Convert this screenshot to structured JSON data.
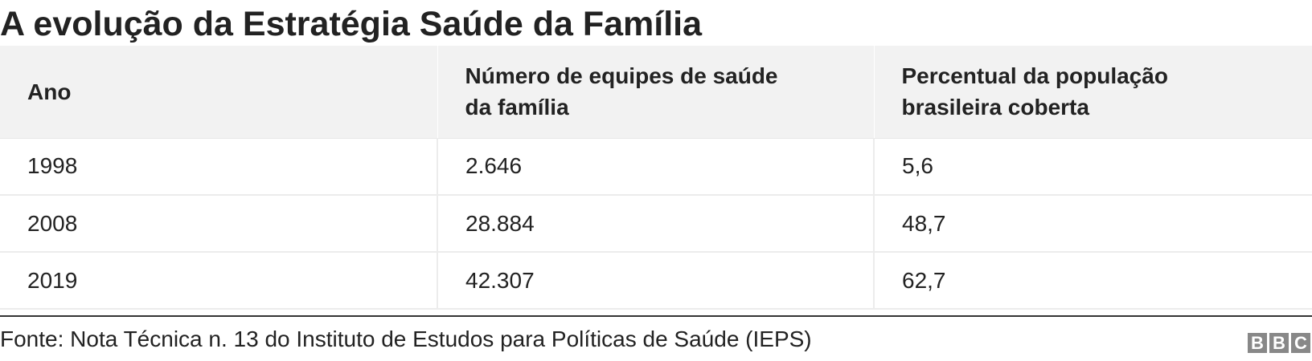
{
  "chart_data": {
    "type": "table",
    "title": "A evolução da Estratégia Saúde da Família",
    "columns": [
      "Ano",
      "Número de equipes de saúde da família",
      "Percentual da população brasileira coberta"
    ],
    "rows": [
      [
        "1998",
        "2.646",
        "5,6"
      ],
      [
        "2008",
        "28.884",
        "48,7"
      ],
      [
        "2019",
        "42.307",
        "62,7"
      ]
    ],
    "source": "Fonte: Nota Técnica n. 13 do Instituto de Estudos para Políticas de Saúde (IEPS)"
  },
  "logo": {
    "letters": [
      "B",
      "B",
      "C"
    ]
  },
  "colors": {
    "header_background": "#f2f2f2",
    "text": "#222222",
    "grid_lines": "#ececec",
    "logo": "#888888"
  }
}
